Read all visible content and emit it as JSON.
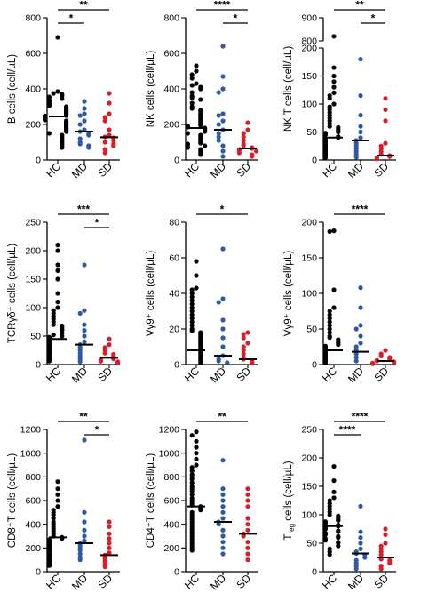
{
  "colors": {
    "HC": "#000000",
    "MD": "#2d5ba3",
    "SD": "#d81e28"
  },
  "chart_data": [
    {
      "type": "scatter",
      "ylabel": "B cells (cell/µL)",
      "categories": [
        "HC",
        "MD",
        "SD"
      ],
      "ylim": [
        0,
        800
      ],
      "yticks": [
        0,
        200,
        400,
        600,
        800
      ],
      "medians": [
        245,
        160,
        128
      ],
      "series": [
        {
          "values": [
            690,
            385,
            375,
            370,
            360,
            355,
            345,
            340,
            335,
            330,
            320,
            315,
            310,
            305,
            300,
            295,
            290,
            285,
            280,
            275,
            270,
            265,
            260,
            255,
            250,
            248,
            245,
            240,
            235,
            230,
            225,
            220,
            215,
            210,
            205,
            200,
            195,
            190,
            185,
            180,
            175,
            170,
            165,
            160,
            150,
            140,
            130,
            120,
            110,
            100,
            90,
            80,
            70
          ]
        },
        {
          "values": [
            330,
            290,
            260,
            250,
            220,
            200,
            170,
            160,
            150,
            140,
            120,
            100,
            90,
            80,
            70
          ]
        },
        {
          "values": [
            375,
            320,
            260,
            240,
            220,
            170,
            140,
            130,
            125,
            110,
            100,
            90,
            80,
            60,
            40
          ]
        }
      ],
      "significance": [
        {
          "from": 0,
          "to": 2,
          "label": "**"
        },
        {
          "from": 0,
          "to": 1,
          "label": "*"
        }
      ]
    },
    {
      "type": "scatter",
      "ylabel": "NK cells (cell/µL)",
      "categories": [
        "HC",
        "MD",
        "SD"
      ],
      "ylim": [
        0,
        800
      ],
      "yticks": [
        0,
        200,
        400,
        600,
        800
      ],
      "medians": [
        180,
        170,
        65
      ],
      "series": [
        {
          "values": [
            530,
            500,
            480,
            460,
            430,
            420,
            410,
            400,
            380,
            360,
            350,
            340,
            320,
            300,
            290,
            280,
            270,
            260,
            250,
            240,
            230,
            220,
            210,
            200,
            195,
            190,
            185,
            180,
            175,
            170,
            165,
            160,
            150,
            140,
            130,
            120,
            110,
            100,
            95,
            90,
            85,
            80,
            70,
            60,
            50,
            40,
            30
          ]
        },
        {
          "values": [
            640,
            470,
            400,
            380,
            260,
            250,
            220,
            200,
            170,
            150,
            130,
            110,
            80,
            50,
            20
          ]
        },
        {
          "values": [
            210,
            170,
            150,
            130,
            110,
            90,
            80,
            70,
            65,
            60,
            55,
            50,
            40,
            30,
            20
          ]
        }
      ],
      "significance": [
        {
          "from": 0,
          "to": 2,
          "label": "****"
        },
        {
          "from": 1,
          "to": 2,
          "label": "*"
        }
      ]
    },
    {
      "type": "scatter",
      "ylabel": "NK T cells (cell/µL)",
      "categories": [
        "HC",
        "MD",
        "SD"
      ],
      "broken_axis": true,
      "ylim": [
        0,
        900
      ],
      "yticks": [
        0,
        50,
        100,
        150,
        200,
        800,
        900
      ],
      "medians": [
        40,
        35,
        8
      ],
      "series": [
        {
          "values": [
            820,
            165,
            150,
            140,
            130,
            120,
            115,
            110,
            100,
            95,
            90,
            85,
            80,
            75,
            70,
            65,
            60,
            58,
            55,
            52,
            50,
            48,
            45,
            42,
            40,
            38,
            36,
            34,
            32,
            30,
            28,
            26,
            24,
            22,
            20,
            18,
            16,
            14,
            12,
            10,
            8,
            6,
            4
          ]
        },
        {
          "values": [
            180,
            115,
            80,
            60,
            50,
            40,
            35,
            30,
            25,
            20,
            15,
            10,
            5
          ]
        },
        {
          "values": [
            110,
            90,
            70,
            30,
            25,
            20,
            15,
            10,
            8,
            6,
            4,
            2
          ]
        }
      ],
      "significance": [
        {
          "from": 0,
          "to": 2,
          "label": "**"
        },
        {
          "from": 1,
          "to": 2,
          "label": "*"
        }
      ]
    },
    {
      "type": "scatter",
      "ylabel": "TCRγδ⁺ cells (cell/µL)",
      "categories": [
        "HC",
        "MD",
        "SD"
      ],
      "ylim": [
        0,
        250
      ],
      "yticks": [
        0,
        50,
        100,
        150,
        200,
        250
      ],
      "medians": [
        45,
        35,
        12
      ],
      "series": [
        {
          "values": [
            210,
            200,
            175,
            165,
            150,
            125,
            110,
            100,
            95,
            90,
            85,
            80,
            75,
            70,
            68,
            65,
            62,
            60,
            55,
            52,
            50,
            48,
            46,
            44,
            42,
            40,
            38,
            36,
            34,
            32,
            30,
            28,
            26,
            24,
            22,
            20,
            18,
            16,
            14,
            12,
            10,
            8,
            6
          ]
        },
        {
          "values": [
            175,
            95,
            90,
            70,
            60,
            50,
            40,
            35,
            30,
            25,
            20,
            15,
            10,
            5
          ]
        },
        {
          "values": [
            45,
            35,
            30,
            25,
            20,
            18,
            15,
            12,
            10,
            8,
            6,
            5,
            3
          ]
        }
      ],
      "significance": [
        {
          "from": 0,
          "to": 2,
          "label": "***"
        },
        {
          "from": 1,
          "to": 2,
          "label": "*"
        }
      ]
    },
    {
      "type": "scatter",
      "ylabel": "Vγ9⁺ cells (cell/µL)",
      "categories": [
        "HC",
        "MD",
        "SD"
      ],
      "ylim": [
        0,
        80
      ],
      "yticks": [
        0,
        20,
        40,
        60,
        80
      ],
      "medians": [
        8,
        5,
        3
      ],
      "series": [
        {
          "values": [
            58,
            50,
            43,
            42,
            40,
            38,
            36,
            34,
            32,
            30,
            28,
            26,
            24,
            22,
            20,
            19,
            18,
            17,
            16,
            15,
            14,
            13,
            12,
            11,
            10,
            9,
            8,
            7,
            6,
            5,
            4,
            3,
            2,
            1
          ]
        },
        {
          "values": [
            65,
            37,
            35,
            25,
            20,
            15,
            10,
            5,
            3,
            2,
            1
          ]
        },
        {
          "values": [
            18,
            17,
            15,
            12,
            10,
            8,
            6,
            4,
            3,
            2,
            1
          ]
        }
      ],
      "significance": [
        {
          "from": 0,
          "to": 2,
          "label": "*"
        }
      ]
    },
    {
      "type": "scatter",
      "ylabel": "Vγ9⁺ cells (cell/µL)",
      "categories": [
        "HC",
        "MD",
        "SD"
      ],
      "ylim": [
        0,
        200
      ],
      "yticks": [
        0,
        50,
        100,
        150,
        200
      ],
      "medians": [
        20,
        18,
        5
      ],
      "series": [
        {
          "values": [
            188,
            187,
            105,
            80,
            75,
            70,
            65,
            60,
            55,
            50,
            45,
            40,
            38,
            35,
            32,
            30,
            28,
            26,
            24,
            22,
            20,
            18,
            16,
            14,
            12,
            10,
            8,
            6,
            4,
            2
          ]
        },
        {
          "values": [
            108,
            80,
            55,
            50,
            40,
            30,
            25,
            20,
            15,
            10,
            5
          ]
        },
        {
          "values": [
            20,
            15,
            12,
            10,
            8,
            6,
            5,
            4,
            3,
            2,
            1
          ]
        }
      ],
      "significance": [
        {
          "from": 0,
          "to": 2,
          "label": "****"
        }
      ]
    },
    {
      "type": "scatter",
      "ylabel": "CD8⁺T cells (cell/µL)",
      "categories": [
        "HC",
        "MD",
        "SD"
      ],
      "ylim": [
        0,
        1200
      ],
      "yticks": [
        0,
        200,
        400,
        600,
        800,
        1000,
        1200
      ],
      "medians": [
        290,
        240,
        140
      ],
      "series": [
        {
          "values": [
            760,
            700,
            650,
            600,
            550,
            520,
            500,
            480,
            450,
            420,
            400,
            380,
            360,
            340,
            320,
            300,
            290,
            280,
            270,
            260,
            250,
            240,
            230,
            220,
            210,
            200,
            190,
            180,
            170,
            160,
            150,
            140,
            130,
            120,
            110,
            100,
            90,
            80,
            70,
            60,
            50
          ]
        },
        {
          "values": [
            1110,
            500,
            420,
            350,
            300,
            260,
            240,
            220,
            200,
            180,
            150,
            120,
            100
          ]
        },
        {
          "values": [
            420,
            380,
            320,
            280,
            240,
            200,
            160,
            140,
            120,
            100,
            80,
            60,
            40
          ]
        }
      ],
      "significance": [
        {
          "from": 0,
          "to": 2,
          "label": "**"
        },
        {
          "from": 1,
          "to": 2,
          "label": "*"
        }
      ]
    },
    {
      "type": "scatter",
      "ylabel": "CD4⁺T cells (cell/µL)",
      "categories": [
        "HC",
        "MD",
        "SD"
      ],
      "ylim": [
        0,
        1200
      ],
      "yticks": [
        0,
        200,
        400,
        600,
        800,
        1000,
        1200
      ],
      "medians": [
        550,
        420,
        320
      ],
      "series": [
        {
          "values": [
            1180,
            1150,
            1100,
            1050,
            1000,
            950,
            900,
            880,
            850,
            820,
            800,
            780,
            750,
            720,
            700,
            680,
            650,
            620,
            600,
            580,
            560,
            550,
            540,
            520,
            500,
            480,
            460,
            440,
            420,
            400,
            380,
            360,
            340,
            320,
            300,
            280,
            260,
            240,
            220,
            200,
            180
          ]
        },
        {
          "values": [
            940,
            700,
            650,
            600,
            550,
            500,
            450,
            420,
            400,
            350,
            300,
            250,
            200,
            150
          ]
        },
        {
          "values": [
            700,
            650,
            600,
            550,
            450,
            400,
            350,
            320,
            300,
            250,
            200,
            150,
            100
          ]
        }
      ],
      "significance": [
        {
          "from": 0,
          "to": 2,
          "label": "**"
        }
      ]
    },
    {
      "type": "scatter",
      "ylabel": "T",
      "ylabel_sub": "reg",
      "ylabel_tail": " cells (cell/µL)",
      "categories": [
        "HC",
        "MD",
        "SD"
      ],
      "ylim": [
        0,
        250
      ],
      "yticks": [
        0,
        50,
        100,
        150,
        200,
        250
      ],
      "medians": [
        80,
        32,
        25
      ],
      "series": [
        {
          "values": [
            185,
            160,
            140,
            130,
            125,
            120,
            115,
            110,
            105,
            100,
            98,
            95,
            92,
            90,
            88,
            85,
            82,
            80,
            78,
            75,
            72,
            70,
            68,
            65,
            62,
            60,
            58,
            55,
            52,
            50,
            45,
            40,
            35,
            30
          ]
        },
        {
          "values": [
            115,
            70,
            60,
            50,
            40,
            35,
            32,
            30,
            25,
            20,
            15,
            10,
            5
          ]
        },
        {
          "values": [
            75,
            65,
            50,
            45,
            40,
            35,
            30,
            25,
            22,
            20,
            15,
            10,
            5
          ]
        }
      ],
      "significance": [
        {
          "from": 0,
          "to": 2,
          "label": "****"
        },
        {
          "from": 0,
          "to": 1,
          "label": "****"
        }
      ]
    }
  ]
}
